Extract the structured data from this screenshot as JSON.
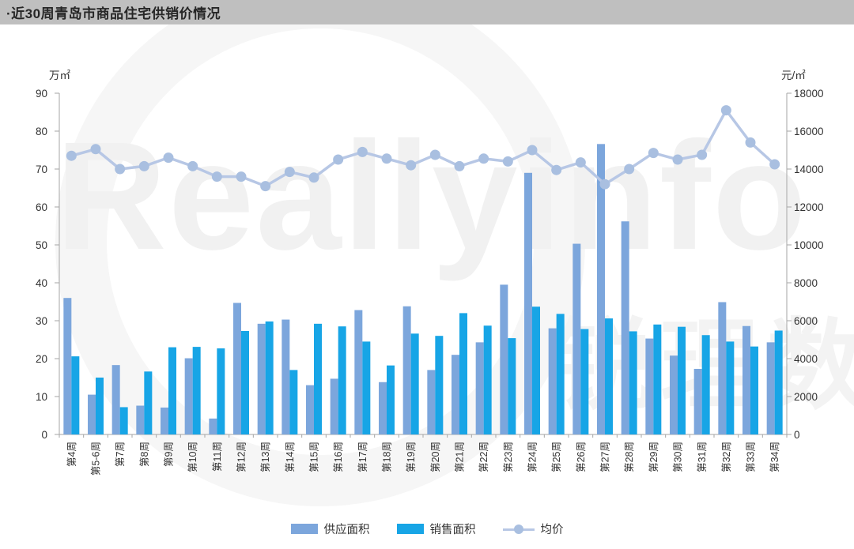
{
  "banner": {
    "title": "·近30周青岛市商品住宅供销价情况"
  },
  "watermark": {
    "text": "Reallyinfo",
    "text2": "锐理数据"
  },
  "colors": {
    "banner_bg": "#bfbfbf",
    "supply_bar": "#7ca6dc",
    "sales_bar": "#17a5e6",
    "price_line": "#b7c7e5",
    "price_marker": "#a9bfe0",
    "axis": "#a6a6a6",
    "tick_text": "#333333"
  },
  "chart_data": {
    "type": "bar",
    "subtype": "grouped-bars-with-line",
    "title": "近30周青岛市商品住宅供销价情况",
    "categories": [
      "第4周",
      "第5-6周",
      "第7周",
      "第8周",
      "第9周",
      "第10周",
      "第11周",
      "第12周",
      "第13周",
      "第14周",
      "第15周",
      "第16周",
      "第17周",
      "第18周",
      "第19周",
      "第20周",
      "第21周",
      "第22周",
      "第23周",
      "第24周",
      "第25周",
      "第26周",
      "第27周",
      "第28周",
      "第29周",
      "第30周",
      "第31周",
      "第32周",
      "第33周",
      "第34周"
    ],
    "series": [
      {
        "name": "供应面积",
        "type": "bar",
        "axis": "left",
        "color": "#7ca6dc",
        "values": [
          36.0,
          10.5,
          18.3,
          7.6,
          7.1,
          20.1,
          4.2,
          34.7,
          29.2,
          30.3,
          13.0,
          14.7,
          32.8,
          13.8,
          33.8,
          17.0,
          21.0,
          24.3,
          39.5,
          69.0,
          28.0,
          50.3,
          76.6,
          56.2,
          25.3,
          20.8,
          17.3,
          34.9,
          28.6,
          24.3
        ]
      },
      {
        "name": "销售面积",
        "type": "bar",
        "axis": "left",
        "color": "#17a5e6",
        "values": [
          20.6,
          15.0,
          7.2,
          16.6,
          23.0,
          23.1,
          22.7,
          27.3,
          29.8,
          17.0,
          29.2,
          28.5,
          24.5,
          18.2,
          26.6,
          26.0,
          32.0,
          28.7,
          25.4,
          33.7,
          31.8,
          27.8,
          30.6,
          27.2,
          29.0,
          28.4,
          26.2,
          24.5,
          23.2,
          27.4
        ]
      },
      {
        "name": "均价",
        "type": "line",
        "axis": "right",
        "color": "#b7c7e5",
        "values": [
          14700,
          15050,
          14000,
          14150,
          14600,
          14150,
          13600,
          13600,
          13100,
          13850,
          13550,
          14500,
          14900,
          14550,
          14200,
          14750,
          14150,
          14550,
          14400,
          15000,
          13950,
          14350,
          13200,
          14000,
          14850,
          14500,
          14750,
          17100,
          15400,
          14250
        ]
      }
    ],
    "left_axis": {
      "label": "万㎡",
      "min": 0,
      "max": 90,
      "step": 10
    },
    "right_axis": {
      "label": "元/㎡",
      "min": 0,
      "max": 18000,
      "step": 2000
    },
    "grid": "off",
    "legend_position": "bottom"
  }
}
